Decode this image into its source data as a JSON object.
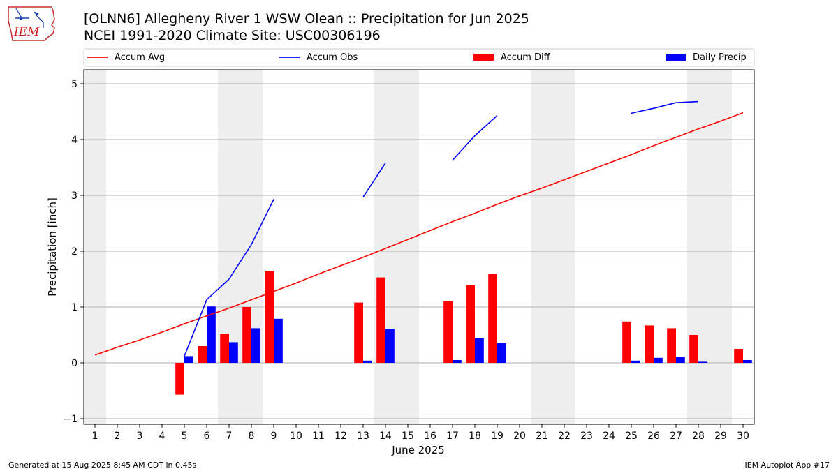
{
  "header": {
    "title": "[OLNN6] Allegheny River 1 WSW Olean :: Precipitation for Jun 2025",
    "subtitle": "NCEI 1991-2020 Climate Site: USC00306196"
  },
  "logo": {
    "text": "IEM",
    "icon": "iem-state-logo"
  },
  "footer": {
    "generated": "Generated at 15 Aug 2025 8:45 AM CDT in 0.45s",
    "app": "IEM Autoplot App #17"
  },
  "colors": {
    "accum_avg": "#ff0000",
    "accum_obs": "#0000ff",
    "accum_diff": "#ff0000",
    "daily_precip": "#0000ff",
    "weekend_shade": "#eeeeee",
    "grid": "#b0b0b0"
  },
  "chart_data": {
    "type": "bar",
    "title": "[OLNN6] Allegheny River 1 WSW Olean :: Precipitation for Jun 2025",
    "subtitle": "NCEI 1991-2020 Climate Site: USC00306196",
    "xlabel": "June 2025",
    "ylabel": "Precipitation [inch]",
    "x": [
      1,
      2,
      3,
      4,
      5,
      6,
      7,
      8,
      9,
      10,
      11,
      12,
      13,
      14,
      15,
      16,
      17,
      18,
      19,
      20,
      21,
      22,
      23,
      24,
      25,
      26,
      27,
      28,
      29,
      30
    ],
    "xlim": [
      0.5,
      30.5
    ],
    "ylim": [
      -1.1,
      5.25
    ],
    "yticks": [
      -1,
      0,
      1,
      2,
      3,
      4,
      5
    ],
    "grid": "y",
    "legend_position": "top",
    "legend": [
      "Accum Avg",
      "Accum Obs",
      "Accum Diff",
      "Daily Precip"
    ],
    "shaded_days": [
      [
        1,
        1
      ],
      [
        7,
        8
      ],
      [
        14,
        15
      ],
      [
        21,
        22
      ],
      [
        28,
        29
      ]
    ],
    "series": [
      {
        "name": "Accum Avg",
        "kind": "line",
        "values": [
          0.14,
          0.28,
          0.41,
          0.55,
          0.7,
          0.84,
          0.98,
          1.13,
          1.28,
          1.43,
          1.59,
          1.74,
          1.89,
          2.05,
          2.21,
          2.37,
          2.53,
          2.68,
          2.84,
          2.99,
          3.13,
          3.28,
          3.43,
          3.58,
          3.73,
          3.89,
          4.04,
          4.19,
          4.33,
          4.48
        ]
      },
      {
        "name": "Accum Obs",
        "kind": "line",
        "values": [
          null,
          null,
          null,
          null,
          0.12,
          1.13,
          1.5,
          2.12,
          2.93,
          null,
          null,
          null,
          2.97,
          3.58,
          null,
          null,
          3.63,
          4.07,
          4.43,
          null,
          null,
          null,
          null,
          null,
          4.47,
          4.56,
          4.66,
          4.68,
          null,
          null
        ]
      },
      {
        "name": "Accum Diff",
        "kind": "bar",
        "values": [
          null,
          null,
          null,
          null,
          -0.57,
          0.3,
          0.52,
          1.0,
          1.65,
          null,
          null,
          null,
          1.08,
          1.53,
          null,
          null,
          1.1,
          1.4,
          1.59,
          null,
          null,
          null,
          null,
          null,
          0.74,
          0.67,
          0.62,
          0.5,
          null,
          0.25
        ]
      },
      {
        "name": "Daily Precip",
        "kind": "bar",
        "values": [
          null,
          null,
          null,
          null,
          0.12,
          1.01,
          0.37,
          0.62,
          0.79,
          null,
          null,
          null,
          0.04,
          0.61,
          null,
          null,
          0.05,
          0.45,
          0.35,
          null,
          null,
          null,
          null,
          null,
          0.04,
          0.09,
          0.1,
          0.02,
          null,
          0.05
        ]
      }
    ]
  }
}
